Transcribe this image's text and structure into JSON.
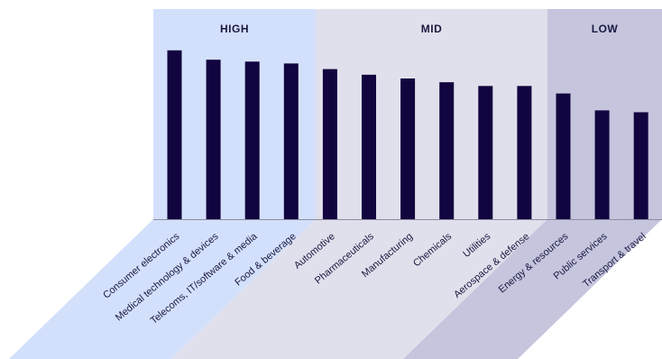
{
  "chart_data": {
    "type": "bar",
    "title": "",
    "xlabel": "",
    "ylabel": "",
    "ylim": [
      0,
      100
    ],
    "bar_color": "#12053f",
    "groups": [
      {
        "label": "HIGH",
        "color": "#d3e0fb",
        "start": 0,
        "end": 3
      },
      {
        "label": "MID",
        "color": "#e0e0ec",
        "start": 4,
        "end": 9
      },
      {
        "label": "LOW",
        "color": "#c5c5de",
        "start": 10,
        "end": 12
      }
    ],
    "categories": [
      "Consumer electronics",
      "Medical technology & devices",
      "Telecoms, IT/software & media",
      "Food & beverage",
      "Automotive",
      "Pharmaceuticals",
      "Manufacturing",
      "Chemicals",
      "Utilities",
      "Aerospace & defense",
      "Energy & resources",
      "Public services",
      "Transport & travel"
    ],
    "values": [
      90,
      85,
      84,
      83,
      80,
      77,
      75,
      73,
      71,
      71,
      67,
      58,
      57
    ]
  }
}
